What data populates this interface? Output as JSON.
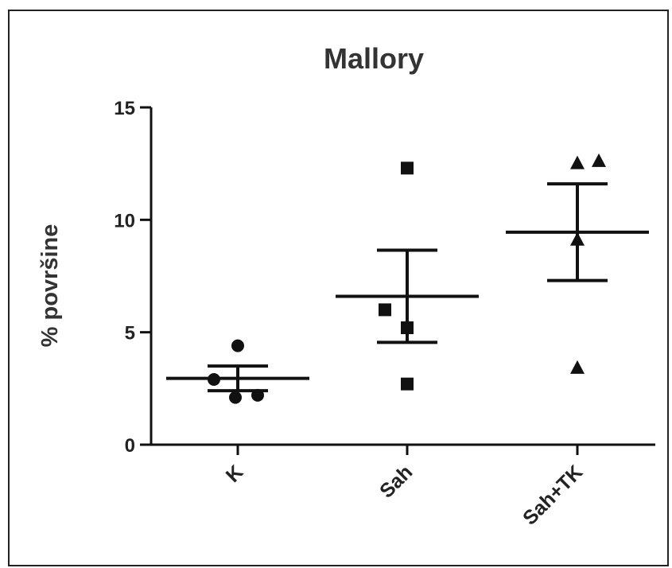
{
  "chart_data": {
    "type": "scatter",
    "title": "Mallory",
    "xlabel": "",
    "ylabel": "% površine",
    "ylim": [
      0,
      15
    ],
    "yticks": [
      0,
      5,
      10,
      15
    ],
    "grid": false,
    "categories": [
      "K",
      "Sah",
      "Sah+TK"
    ],
    "series": [
      {
        "category": "K",
        "marker": "circle",
        "points": [
          4.4,
          2.9,
          2.1,
          2.2
        ],
        "mean": 2.95,
        "sem_upper": 3.5,
        "sem_lower": 2.4
      },
      {
        "category": "Sah",
        "marker": "square",
        "points": [
          12.3,
          6.0,
          5.2,
          2.7
        ],
        "mean": 6.6,
        "sem_upper": 8.65,
        "sem_lower": 4.55
      },
      {
        "category": "Sah+TK",
        "marker": "triangle",
        "points": [
          12.5,
          12.6,
          9.1,
          3.4
        ],
        "mean": 9.45,
        "sem_upper": 11.6,
        "sem_lower": 7.3
      }
    ],
    "color": "#111111"
  }
}
